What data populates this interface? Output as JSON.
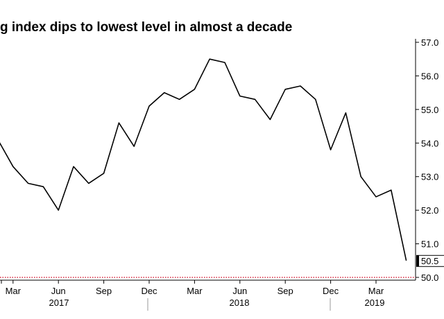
{
  "chart_data": {
    "type": "line",
    "title": "g index dips to lowest level in almost a decade",
    "x": [
      "2017-02",
      "2017-03",
      "2017-04",
      "2017-05",
      "2017-06",
      "2017-07",
      "2017-08",
      "2017-09",
      "2017-10",
      "2017-11",
      "2017-12",
      "2018-01",
      "2018-02",
      "2018-03",
      "2018-04",
      "2018-05",
      "2018-06",
      "2018-07",
      "2018-08",
      "2018-09",
      "2018-10",
      "2018-11",
      "2018-12",
      "2019-01",
      "2019-02",
      "2019-03",
      "2019-04",
      "2019-05"
    ],
    "series": [
      {
        "name": "",
        "color": "#000000",
        "values": [
          54.1,
          53.3,
          52.8,
          52.7,
          52.0,
          53.3,
          52.8,
          53.1,
          54.6,
          53.9,
          55.1,
          55.5,
          55.3,
          55.6,
          56.5,
          56.4,
          55.4,
          55.3,
          54.7,
          55.6,
          55.7,
          55.3,
          53.8,
          54.9,
          53.0,
          52.4,
          52.6,
          50.5
        ]
      }
    ],
    "x_tick_labels": [
      "Mar",
      "Jun",
      "Sep",
      "Dec",
      "Mar",
      "Jun",
      "Sep",
      "Dec",
      "Mar"
    ],
    "x_tick_months": [
      "2017-03",
      "2017-06",
      "2017-09",
      "2017-12",
      "2018-03",
      "2018-06",
      "2018-09",
      "2018-12",
      "2019-03"
    ],
    "year_labels": [
      "2017",
      "2018",
      "2019"
    ],
    "y_ticks": [
      "57.0",
      "56.0",
      "55.0",
      "54.0",
      "53.0",
      "52.0",
      "51.0",
      "50.0"
    ],
    "ylim": [
      50.0,
      57.0
    ],
    "y_axis_side": "right",
    "reference_line": {
      "value": 50.0,
      "color": "#d8243c"
    },
    "end_label": "50.5",
    "grid": false
  }
}
